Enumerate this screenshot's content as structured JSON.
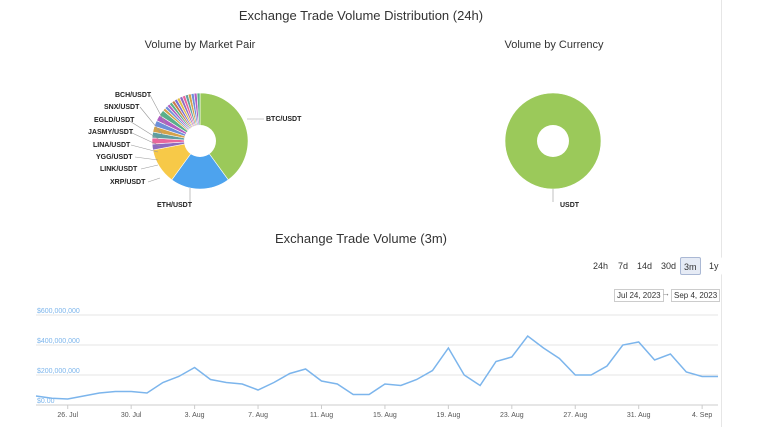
{
  "titles": {
    "distribution": "Exchange Trade Volume Distribution (24h)",
    "market_pair": "Volume by Market Pair",
    "currency": "Volume by Currency",
    "volume_3m": "Exchange Trade Volume (3m)"
  },
  "range_selector": {
    "buttons": [
      "24h",
      "7d",
      "14d",
      "30d",
      "3m",
      "1y"
    ],
    "selected": "3m",
    "from_date": "Jul 24, 2023",
    "to_date": "Sep 4, 2023"
  },
  "colors": {
    "btc": "#9bc95a",
    "eth": "#4da3ee",
    "xrp": "#f7c948",
    "line": "#7cb5ec",
    "axis_label": "#7cb5ec",
    "selected_button": "#e6ebf5"
  },
  "chart_data": [
    {
      "type": "pie",
      "title": "Volume by Market Pair",
      "labels": [
        "BTC/USDT",
        "ETH/USDT",
        "XRP/USDT",
        "LINK/USDT",
        "YGG/USDT",
        "LINA/USDT",
        "JASMY/USDT",
        "EGLD/USDT",
        "SNX/USDT",
        "BCH/USDT"
      ],
      "values": [
        40,
        20,
        12,
        2,
        2,
        2,
        2,
        2,
        2,
        2
      ],
      "note_other_small_slices": 14
    },
    {
      "type": "pie",
      "title": "Volume by Currency",
      "labels": [
        "USDT"
      ],
      "values": [
        100
      ]
    },
    {
      "type": "line",
      "title": "Exchange Trade Volume (3m)",
      "y_ticks": [
        "$0.00",
        "$200,000,000",
        "$400,000,000",
        "$600,000,000"
      ],
      "x_ticks": [
        "26. Jul",
        "30. Jul",
        "3. Aug",
        "7. Aug",
        "11. Aug",
        "15. Aug",
        "19. Aug",
        "23. Aug",
        "27. Aug",
        "31. Aug",
        "4. Sep"
      ],
      "ylim": [
        0,
        600000000
      ],
      "x": [
        "2023-07-24",
        "2023-07-25",
        "2023-07-26",
        "2023-07-27",
        "2023-07-28",
        "2023-07-29",
        "2023-07-30",
        "2023-07-31",
        "2023-08-01",
        "2023-08-02",
        "2023-08-03",
        "2023-08-04",
        "2023-08-05",
        "2023-08-06",
        "2023-08-07",
        "2023-08-08",
        "2023-08-09",
        "2023-08-10",
        "2023-08-11",
        "2023-08-12",
        "2023-08-13",
        "2023-08-14",
        "2023-08-15",
        "2023-08-16",
        "2023-08-17",
        "2023-08-18",
        "2023-08-19",
        "2023-08-20",
        "2023-08-21",
        "2023-08-22",
        "2023-08-23",
        "2023-08-24",
        "2023-08-25",
        "2023-08-26",
        "2023-08-27",
        "2023-08-28",
        "2023-08-29",
        "2023-08-30",
        "2023-08-31",
        "2023-09-01",
        "2023-09-02",
        "2023-09-03",
        "2023-09-04",
        "2023-09-05"
      ],
      "values": [
        60000000,
        45000000,
        40000000,
        60000000,
        80000000,
        90000000,
        90000000,
        80000000,
        150000000,
        190000000,
        250000000,
        170000000,
        150000000,
        140000000,
        100000000,
        150000000,
        210000000,
        240000000,
        160000000,
        140000000,
        70000000,
        70000000,
        140000000,
        130000000,
        170000000,
        230000000,
        380000000,
        200000000,
        130000000,
        290000000,
        320000000,
        460000000,
        380000000,
        310000000,
        200000000,
        200000000,
        260000000,
        400000000,
        420000000,
        300000000,
        340000000,
        220000000,
        190000000,
        190000000
      ]
    }
  ]
}
